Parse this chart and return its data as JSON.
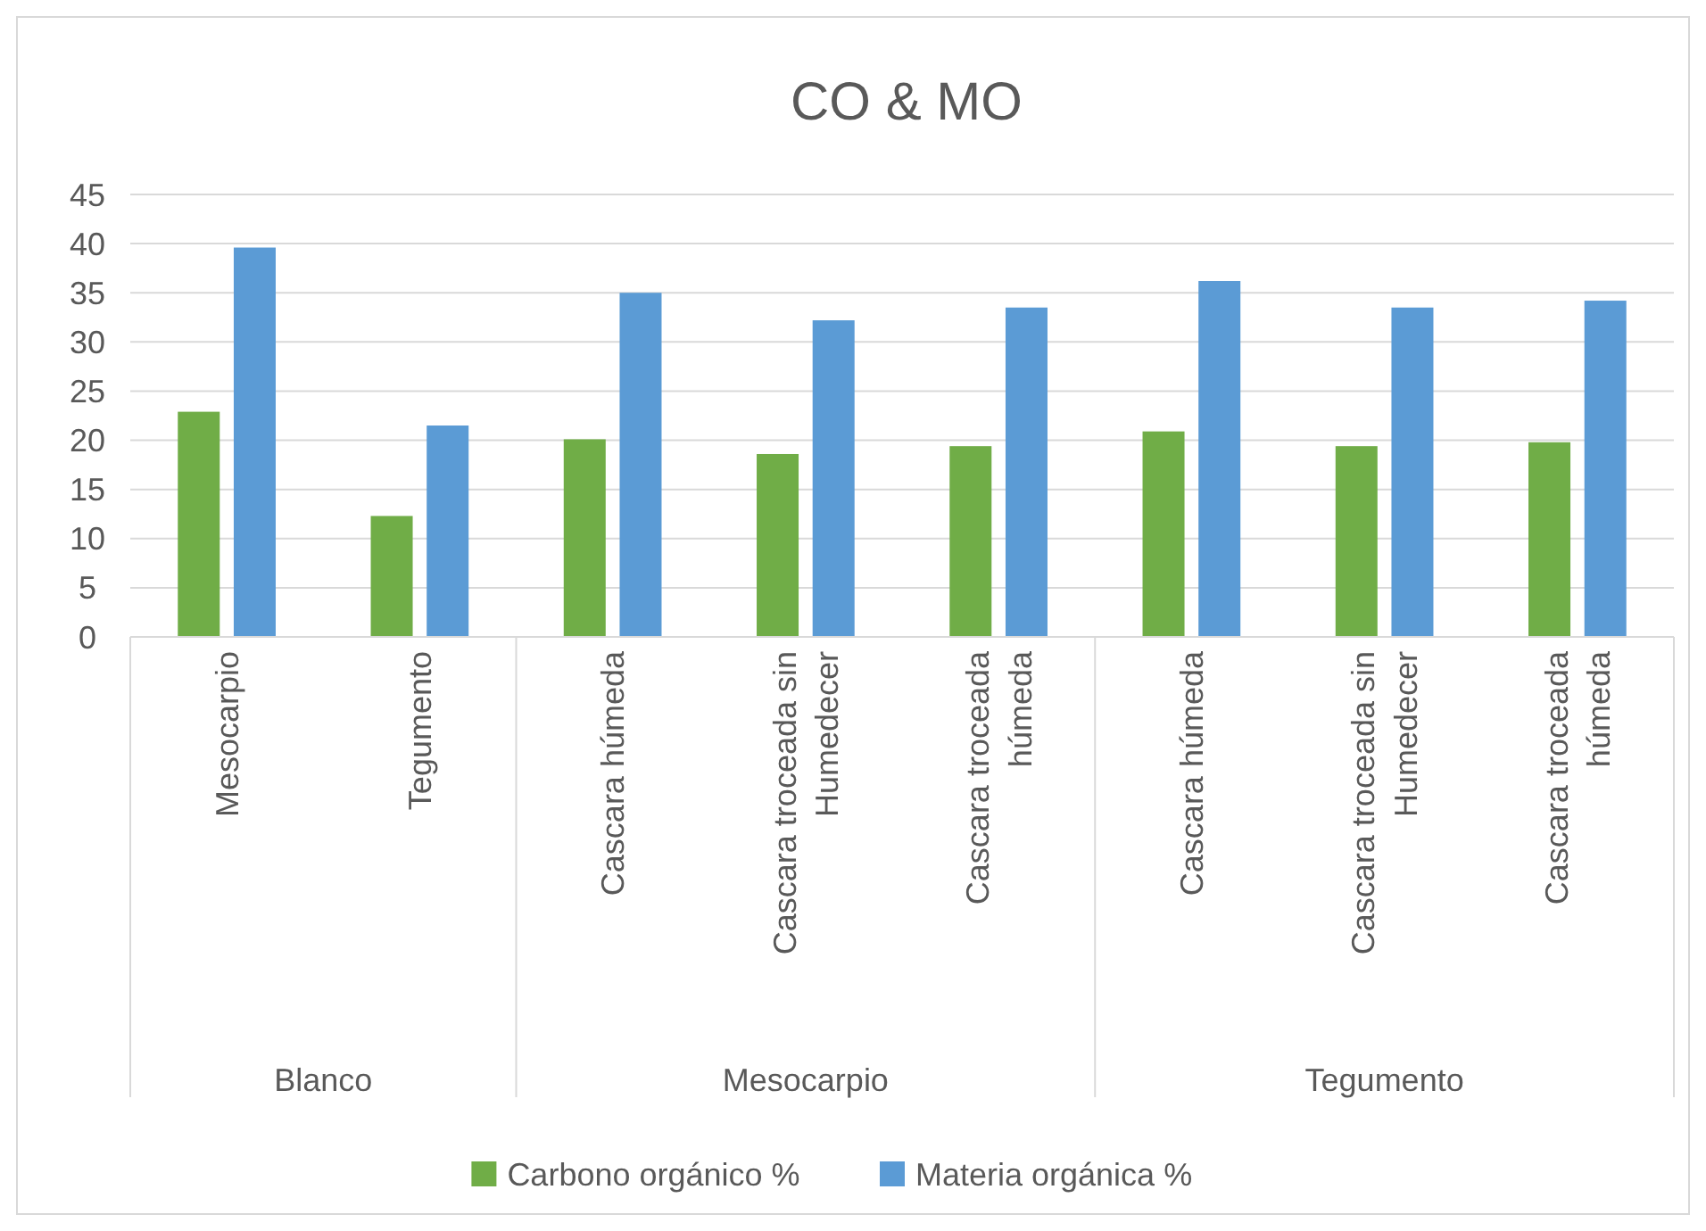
{
  "chart_data": {
    "type": "bar",
    "title": "CO & MO",
    "categories": [
      "Mesocarpio",
      "Tegumento",
      "Cascara húmeda",
      "Cascara troceada sin Humedecer",
      "Cascara troceada húmeda",
      "Cascara húmeda",
      "Cascara troceada sin Humedecer",
      "Cascara troceada húmeda"
    ],
    "series": [
      {
        "name": "Carbono orgánico %",
        "color": "#70ad47",
        "values": [
          22.9,
          12.3,
          20.1,
          18.6,
          19.4,
          20.9,
          19.4,
          19.8
        ]
      },
      {
        "name": "Materia orgánica %",
        "color": "#5b9bd5",
        "values": [
          39.6,
          21.5,
          35.0,
          32.2,
          33.5,
          36.2,
          33.5,
          34.2
        ]
      }
    ],
    "annotations": [
      "Blanco",
      "Mesocarpio",
      "Tegumento"
    ],
    "ylim": [
      0,
      45
    ],
    "yticks": [
      0,
      5,
      10,
      15,
      20,
      25,
      30,
      35,
      40,
      45
    ],
    "grid": "y",
    "legend": "bottom"
  }
}
